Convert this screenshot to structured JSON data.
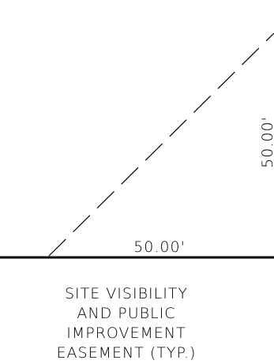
{
  "drawing": {
    "dimension_horizontal": "50.00'",
    "dimension_vertical": "50.00'",
    "note_lines": [
      "SITE VISIBILITY",
      "AND PUBLIC",
      "IMPROVEMENT",
      "EASEMENT (TYP.)"
    ],
    "line_color": "#000000"
  }
}
